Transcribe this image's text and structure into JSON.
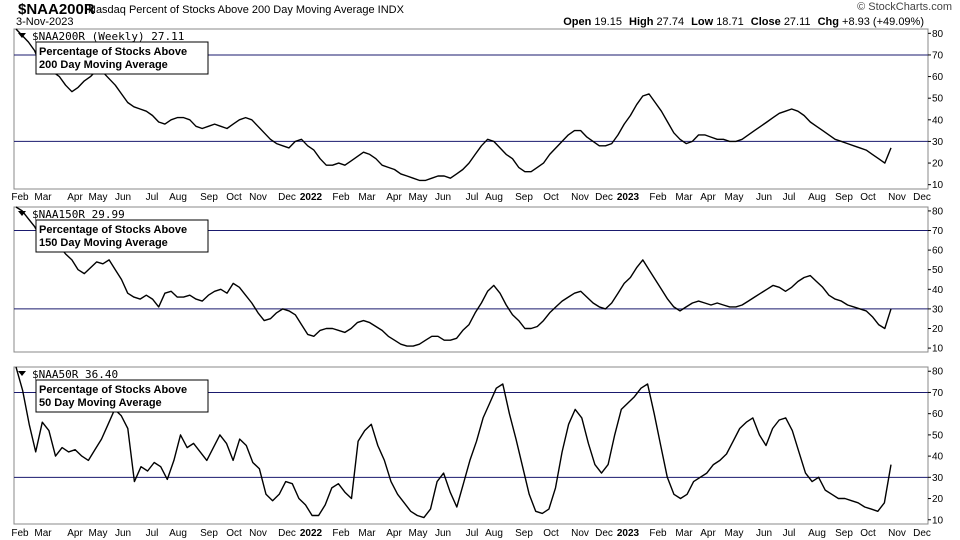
{
  "header": {
    "symbol": "$NAA200R",
    "description": "Nasdaq Percent of Stocks Above 200 Day Moving Average INDX",
    "date": "3-Nov-2023",
    "brand": "© StockCharts.com",
    "ohlc": {
      "open_label": "Open",
      "open": "19.15",
      "high_label": "High",
      "high": "27.74",
      "low_label": "Low",
      "low": "18.71",
      "close_label": "Close",
      "close": "27.11",
      "chg_label": "Chg",
      "chg": "+8.93 (+49.09%)"
    }
  },
  "chart_data": [
    {
      "type": "line",
      "label": "$NAA200R (Weekly) 27.11",
      "annotation": [
        "Percentage of Stocks Above",
        "200 Day Moving Average"
      ],
      "ylim": [
        8,
        82
      ],
      "y_ticks": [
        10,
        20,
        30,
        40,
        50,
        60,
        70,
        80
      ],
      "reference_lines": [
        70,
        30
      ],
      "x_ticks": [
        "Feb",
        "Mar",
        "Apr",
        "May",
        "Jun",
        "Jul",
        "Aug",
        "Sep",
        "Oct",
        "Nov",
        "Dec",
        "2022",
        "Feb",
        "Mar",
        "Apr",
        "May",
        "Jun",
        "Jul",
        "Aug",
        "Sep",
        "Oct",
        "Nov",
        "Dec",
        "2023",
        "Feb",
        "Mar",
        "Apr",
        "May",
        "Jun",
        "Jul",
        "Aug",
        "Sep",
        "Oct",
        "Nov",
        "Dec"
      ],
      "values": [
        83,
        79,
        76,
        72,
        65,
        63,
        62,
        60,
        56,
        53,
        55,
        58,
        60,
        63,
        62,
        59,
        56,
        52,
        48,
        46,
        45,
        44,
        42,
        39,
        38,
        40,
        41,
        41,
        40,
        37,
        36,
        37,
        38,
        37,
        36,
        38,
        40,
        41,
        40,
        37,
        34,
        31,
        29,
        28,
        27,
        30,
        31,
        28,
        26,
        22,
        19,
        19,
        20,
        19,
        21,
        23,
        25,
        24,
        22,
        19,
        18,
        17,
        15,
        14,
        13,
        12,
        12,
        13,
        14,
        14,
        13,
        15,
        17,
        20,
        24,
        28,
        31,
        30,
        27,
        24,
        22,
        18,
        16,
        16,
        18,
        20,
        24,
        27,
        30,
        33,
        35,
        35,
        32,
        30,
        28,
        28,
        29,
        33,
        38,
        42,
        47,
        51,
        52,
        48,
        44,
        39,
        34,
        31,
        29,
        30,
        33,
        33,
        32,
        31,
        31,
        30,
        30,
        31,
        33,
        35,
        37,
        39,
        41,
        43,
        44,
        45,
        44,
        42,
        39,
        37,
        35,
        33,
        31,
        30,
        29,
        28,
        27,
        26,
        24,
        22,
        20,
        27
      ]
    },
    {
      "type": "line",
      "label": "$NAA150R 29.99",
      "annotation": [
        "Percentage of Stocks Above",
        "150 Day Moving Average"
      ],
      "ylim": [
        8,
        82
      ],
      "y_ticks": [
        10,
        20,
        30,
        40,
        50,
        60,
        70,
        80
      ],
      "reference_lines": [
        70,
        30
      ],
      "x_ticks": [],
      "values": [
        83,
        80,
        76,
        72,
        66,
        64,
        63,
        62,
        58,
        55,
        50,
        48,
        51,
        54,
        53,
        55,
        50,
        45,
        38,
        36,
        35,
        37,
        35,
        31,
        38,
        39,
        36,
        36,
        37,
        35,
        34,
        37,
        39,
        40,
        38,
        43,
        41,
        37,
        33,
        28,
        24,
        25,
        28,
        30,
        29,
        27,
        22,
        17,
        16,
        19,
        20,
        20,
        19,
        18,
        20,
        23,
        24,
        23,
        21,
        19,
        16,
        14,
        12,
        11,
        11,
        12,
        14,
        16,
        16,
        14,
        14,
        15,
        19,
        22,
        28,
        33,
        39,
        42,
        38,
        32,
        27,
        24,
        20,
        20,
        21,
        24,
        28,
        31,
        34,
        36,
        38,
        39,
        36,
        33,
        31,
        30,
        33,
        38,
        43,
        46,
        51,
        55,
        50,
        45,
        40,
        35,
        31,
        29,
        31,
        33,
        34,
        33,
        32,
        33,
        32,
        31,
        31,
        32,
        34,
        36,
        38,
        40,
        42,
        41,
        39,
        41,
        44,
        46,
        47,
        44,
        41,
        37,
        35,
        34,
        32,
        31,
        30,
        29,
        26,
        22,
        20,
        30
      ]
    },
    {
      "type": "line",
      "label": "$NAA50R 36.40",
      "annotation": [
        "Percentage of Stocks Above",
        "50 Day Moving Average"
      ],
      "ylim": [
        8,
        82
      ],
      "y_ticks": [
        10,
        20,
        30,
        40,
        50,
        60,
        70,
        80
      ],
      "reference_lines": [
        70,
        30
      ],
      "x_ticks": [
        "Feb",
        "Mar",
        "Apr",
        "May",
        "Jun",
        "Jul",
        "Aug",
        "Sep",
        "Oct",
        "Nov",
        "Dec",
        "2022",
        "Feb",
        "Mar",
        "Apr",
        "May",
        "Jun",
        "Jul",
        "Aug",
        "Sep",
        "Oct",
        "Nov",
        "Dec",
        "2023",
        "Feb",
        "Mar",
        "Apr",
        "May",
        "Jun",
        "Jul",
        "Aug",
        "Sep",
        "Oct",
        "Nov",
        "Dec"
      ],
      "values": [
        82,
        71,
        55,
        42,
        56,
        52,
        40,
        44,
        42,
        43,
        40,
        38,
        43,
        48,
        55,
        62,
        59,
        53,
        28,
        35,
        33,
        37,
        35,
        29,
        38,
        50,
        44,
        46,
        42,
        38,
        44,
        50,
        46,
        38,
        48,
        45,
        37,
        34,
        22,
        19,
        22,
        28,
        27,
        20,
        17,
        12,
        12,
        17,
        25,
        27,
        23,
        20,
        47,
        52,
        55,
        45,
        38,
        28,
        22,
        18,
        14,
        12,
        11,
        15,
        28,
        32,
        23,
        16,
        27,
        38,
        47,
        58,
        65,
        72,
        74,
        60,
        48,
        35,
        22,
        14,
        13,
        15,
        25,
        42,
        55,
        62,
        58,
        46,
        36,
        32,
        36,
        50,
        62,
        65,
        68,
        72,
        74,
        60,
        45,
        30,
        22,
        20,
        22,
        28,
        30,
        32,
        36,
        38,
        41,
        47,
        53,
        56,
        58,
        50,
        45,
        53,
        57,
        58,
        52,
        42,
        32,
        28,
        30,
        24,
        22,
        20,
        20,
        19,
        18,
        16,
        15,
        14,
        18,
        36
      ]
    }
  ]
}
